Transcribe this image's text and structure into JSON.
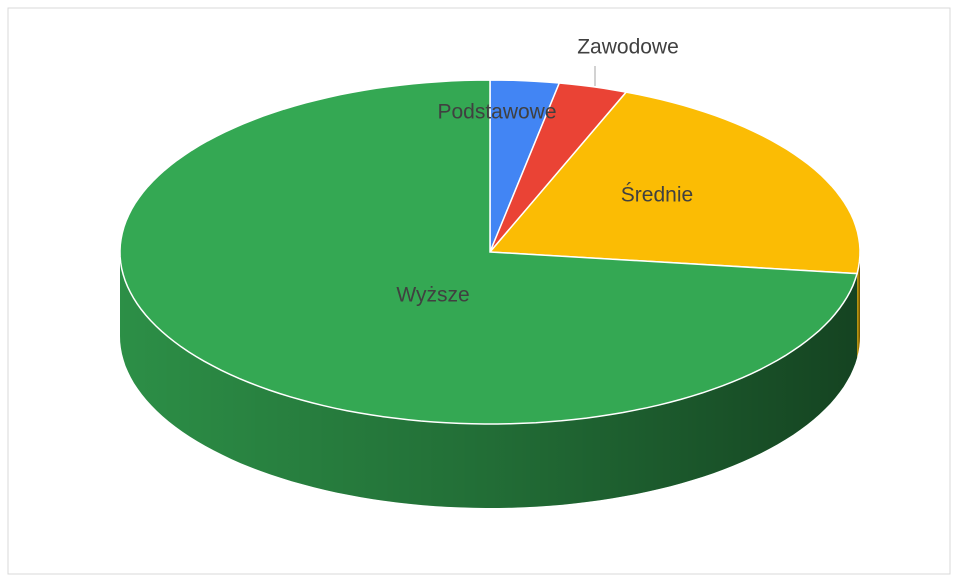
{
  "chart_data": {
    "type": "pie3d",
    "categories": [
      "Podstawowe",
      "Zawodowe",
      "Średnie",
      "Wyższe"
    ],
    "values": [
      3,
      3,
      21,
      73
    ],
    "colors": [
      "#4285f4",
      "#ea4335",
      "#fbbc04",
      "#34a853"
    ]
  }
}
